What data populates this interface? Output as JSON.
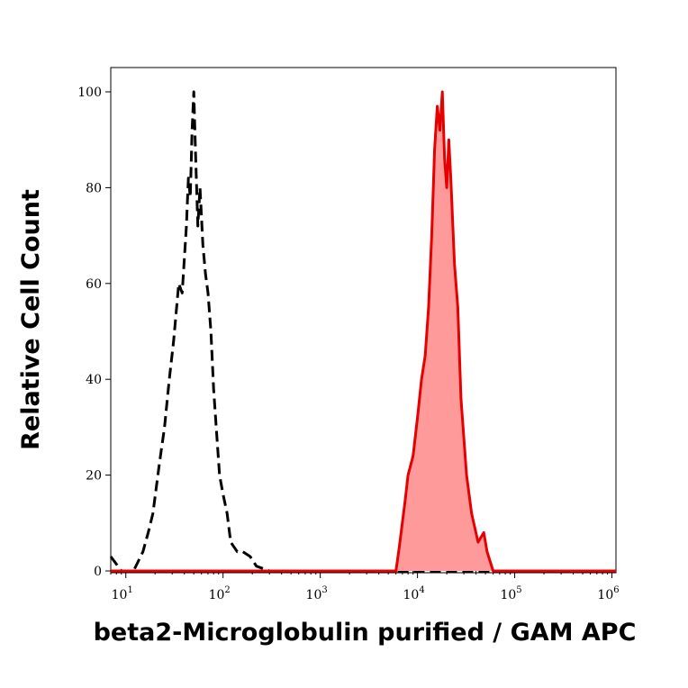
{
  "chart_data": {
    "type": "area",
    "xlabel": "beta2-Microglobulin purified / GAM APC",
    "ylabel": "Relative Cell Count",
    "xscale": "log",
    "xlim": [
      7,
      1100000
    ],
    "ylim": [
      0,
      105
    ],
    "x_ticks": [
      {
        "base": "10",
        "exp": "1"
      },
      {
        "base": "10",
        "exp": "2"
      },
      {
        "base": "10",
        "exp": "3"
      },
      {
        "base": "10",
        "exp": "4"
      },
      {
        "base": "10",
        "exp": "5"
      },
      {
        "base": "10",
        "exp": "6"
      }
    ],
    "y_ticks": [
      "0",
      "20",
      "40",
      "60",
      "80",
      "100"
    ],
    "series": [
      {
        "style": "dashed",
        "color": "#000000",
        "filled": false,
        "points": [
          [
            7,
            3
          ],
          [
            9,
            0
          ],
          [
            12,
            0
          ],
          [
            15,
            4
          ],
          [
            17,
            8
          ],
          [
            19,
            12
          ],
          [
            22,
            22
          ],
          [
            25,
            30
          ],
          [
            28,
            40
          ],
          [
            31,
            48
          ],
          [
            35,
            60
          ],
          [
            38,
            58
          ],
          [
            42,
            72
          ],
          [
            44,
            82
          ],
          [
            46,
            78
          ],
          [
            48,
            92
          ],
          [
            50,
            100
          ],
          [
            52,
            88
          ],
          [
            55,
            72
          ],
          [
            58,
            80
          ],
          [
            62,
            68
          ],
          [
            66,
            62
          ],
          [
            70,
            58
          ],
          [
            75,
            50
          ],
          [
            80,
            38
          ],
          [
            85,
            30
          ],
          [
            92,
            20
          ],
          [
            100,
            16
          ],
          [
            110,
            12
          ],
          [
            120,
            6
          ],
          [
            140,
            4
          ],
          [
            160,
            4
          ],
          [
            190,
            3
          ],
          [
            220,
            1
          ],
          [
            300,
            0
          ],
          [
            1000000,
            0
          ]
        ]
      },
      {
        "style": "solid",
        "color": "#e60000",
        "fill": "#ff9a9a",
        "filled": true,
        "points": [
          [
            7,
            0
          ],
          [
            6000,
            0
          ],
          [
            6500,
            5
          ],
          [
            7500,
            15
          ],
          [
            8000,
            20
          ],
          [
            9000,
            24
          ],
          [
            10000,
            32
          ],
          [
            11000,
            40
          ],
          [
            12000,
            45
          ],
          [
            13000,
            55
          ],
          [
            14000,
            70
          ],
          [
            15000,
            88
          ],
          [
            16000,
            97
          ],
          [
            17000,
            92
          ],
          [
            18000,
            100
          ],
          [
            19000,
            86
          ],
          [
            20000,
            80
          ],
          [
            21000,
            90
          ],
          [
            22000,
            82
          ],
          [
            24000,
            64
          ],
          [
            26000,
            55
          ],
          [
            28000,
            36
          ],
          [
            32000,
            20
          ],
          [
            36000,
            12
          ],
          [
            42000,
            6
          ],
          [
            48000,
            8
          ],
          [
            52000,
            4
          ],
          [
            60000,
            0
          ],
          [
            1100000,
            0
          ]
        ]
      }
    ]
  }
}
